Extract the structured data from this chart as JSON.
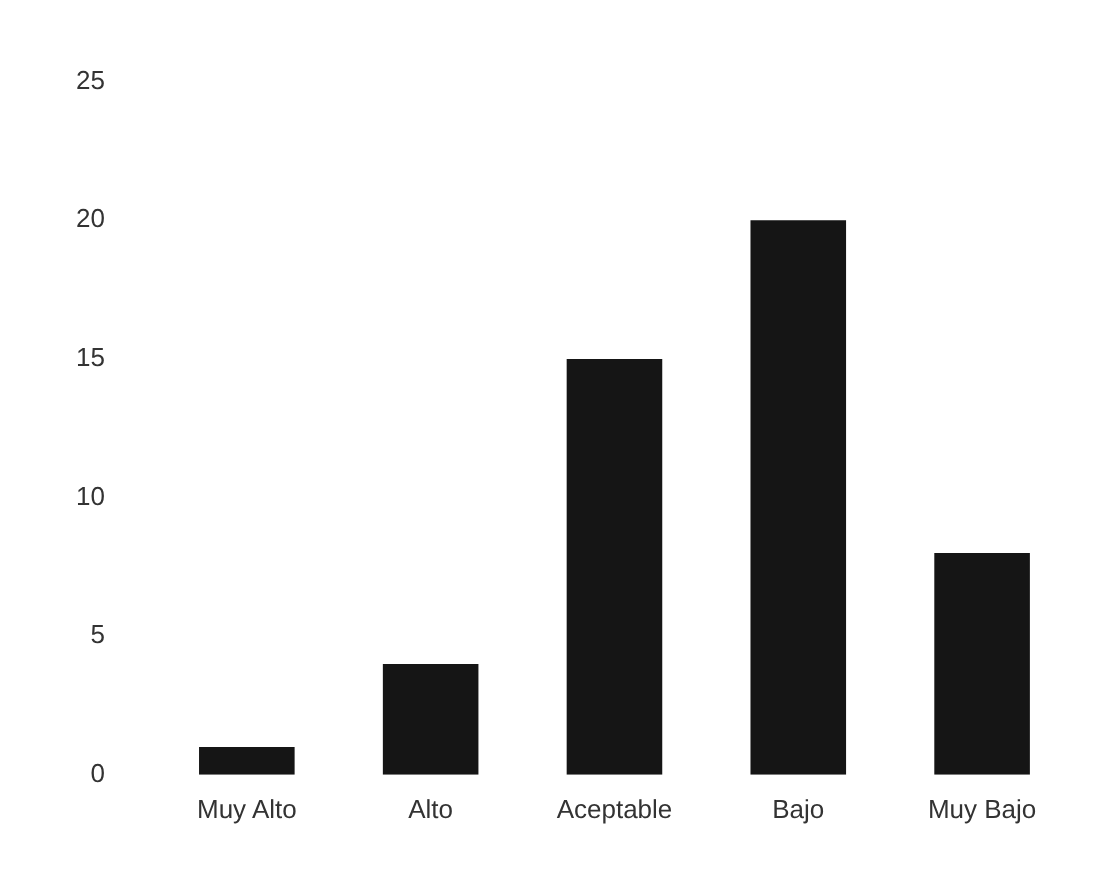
{
  "chart_data": {
    "type": "bar",
    "categories": [
      "Muy Alto",
      "Alto",
      "Aceptable",
      "Bajo",
      "Muy Bajo"
    ],
    "values": [
      1,
      4,
      15,
      20,
      8
    ],
    "color": "#151515",
    "ylim": [
      0,
      25
    ],
    "yticks": [
      0,
      5,
      10,
      15,
      20,
      25
    ],
    "grid": false,
    "legend": false
  }
}
